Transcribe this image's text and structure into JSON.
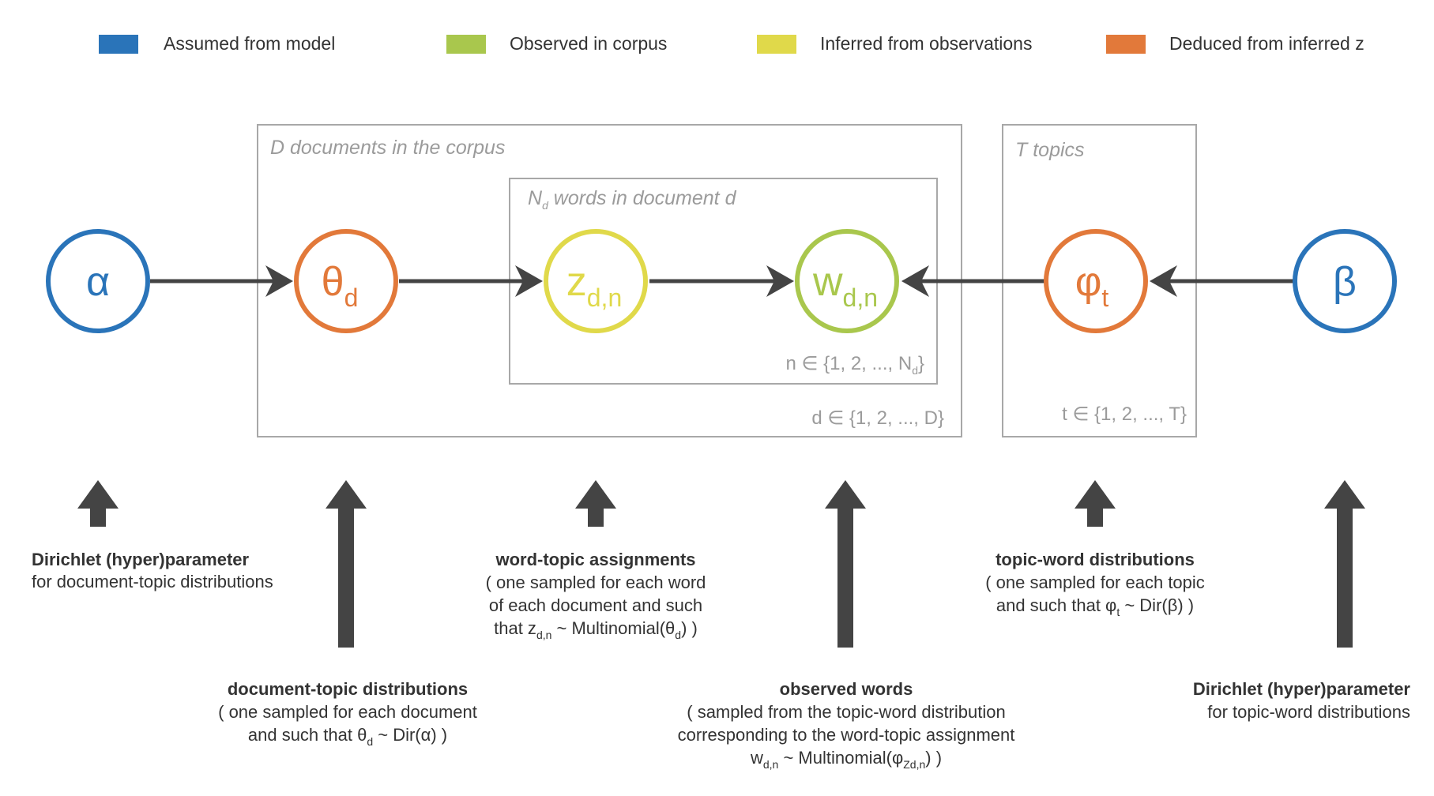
{
  "colors": {
    "assumed": "#2a74b9",
    "observed": "#a9c74d",
    "inferred": "#e0d94a",
    "deduced": "#e2793a",
    "arrow": "#444444",
    "plate": "#a8a8a8"
  },
  "legend": [
    {
      "label": "Assumed from model",
      "color": "#2a74b9"
    },
    {
      "label": "Observed in corpus",
      "color": "#a9c74d"
    },
    {
      "label": "Inferred from observations",
      "color": "#e0d94a"
    },
    {
      "label": "Deduced from inferred z",
      "color": "#e2793a"
    }
  ],
  "plates": {
    "documents": {
      "title": "D documents in the corpus",
      "index": "d ∈ {1, 2, ..., D}"
    },
    "words": {
      "title_main": "N",
      "title_sub": "d",
      "title_rest": " words in document d",
      "index_main": "n ∈ {1, 2, ..., N",
      "index_sub": "d",
      "index_end": "}"
    },
    "topics": {
      "title": "T topics",
      "index": "t ∈ {1, 2, ..., T}"
    }
  },
  "nodes": {
    "alpha": {
      "symbol": "α",
      "sub": ""
    },
    "theta": {
      "symbol": "θ",
      "sub": "d"
    },
    "z": {
      "symbol": "z",
      "sub": "d,n"
    },
    "w": {
      "symbol": "w",
      "sub": "d,n"
    },
    "phi": {
      "symbol": "φ",
      "sub": "t"
    },
    "beta": {
      "symbol": "β",
      "sub": ""
    }
  },
  "descriptions": {
    "alpha": {
      "title": "Dirichlet (hyper)parameter",
      "line1": "for document-topic distributions"
    },
    "theta": {
      "title": "document-topic distributions",
      "line1": "( one sampled for each document",
      "line2_a": "and such that θ",
      "line2_sub": "d",
      "line2_b": " ~ Dir(α) )"
    },
    "z": {
      "title": "word-topic assignments",
      "line1": "( one sampled for each word",
      "line2": "of each document and such",
      "line3_a": "that z",
      "line3_sub1": "d,n",
      "line3_b": " ~ Multinomial(θ",
      "line3_sub2": "d",
      "line3_c": ") )"
    },
    "w": {
      "title": "observed words",
      "line1": "( sampled from the topic-word distribution",
      "line2": "corresponding to the word-topic assignment",
      "line3_a": "w",
      "line3_sub1": "d,n",
      "line3_b": " ~ Multinomial(φ",
      "line3_sub2": "Zd,n",
      "line3_c": ") )"
    },
    "phi": {
      "title": "topic-word distributions",
      "line1": "( one sampled for each topic",
      "line2_a": "and such that φ",
      "line2_sub": "t",
      "line2_b": " ~ Dir(β) )"
    },
    "beta": {
      "title": "Dirichlet (hyper)parameter",
      "line1": "for topic-word distributions"
    }
  }
}
